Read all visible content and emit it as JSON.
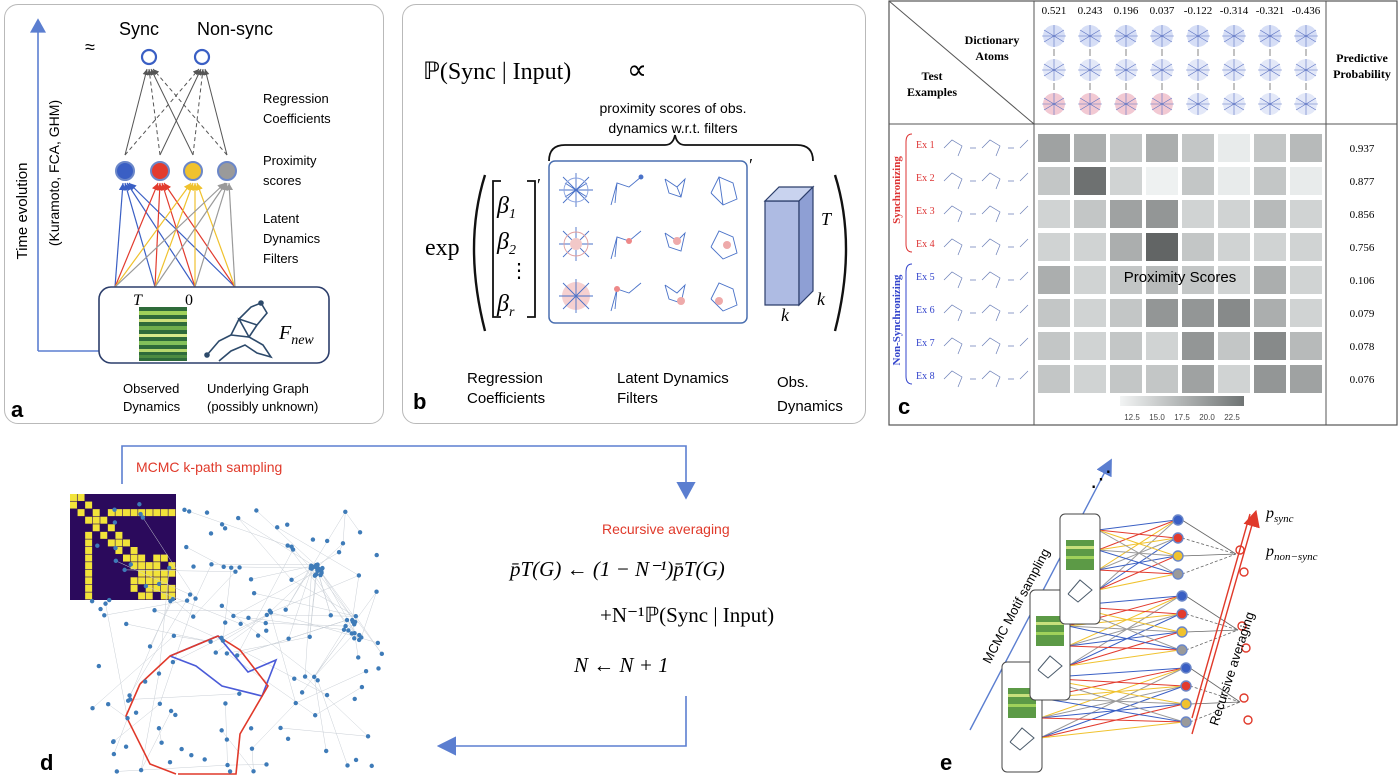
{
  "panel_a": {
    "letter": "a",
    "approx": "≈",
    "sync_label": "Sync",
    "nonsync_label": "Non-sync",
    "axis_label_1": "Time evolution",
    "axis_label_2": "(Kuramoto, FCA, GHM)",
    "regression_line1": "Regression",
    "regression_line2": "Coefficients",
    "proximity_line1": "Proximity",
    "proximity_line2": "scores",
    "latent_line1": "Latent",
    "latent_line2": "Dynamics",
    "latent_line3": "Filters",
    "T": "T",
    "zero": "0",
    "F": "F",
    "F_sub": "new",
    "observed_line1": "Observed",
    "observed_line2": "Dynamics",
    "graph_line1": "Underlying Graph",
    "graph_line2": "(possibly unknown)",
    "colors": {
      "blue": "#3a5fc4",
      "red": "#e23b2e",
      "yellow": "#f0c22e",
      "gray": "#9a9a9a",
      "arrow": "#6b87c9"
    }
  },
  "panel_b": {
    "letter": "b",
    "prob": "ℙ(Sync | Input)",
    "prop": "∝",
    "brace_line1": "proximity scores of obs.",
    "brace_line2": "dynamics w.r.t. filters",
    "exp": "exp",
    "beta": "β",
    "b1": "1",
    "b2": "2",
    "vdots": "⋮",
    "br": "r",
    "prime": "′",
    "T": "T",
    "k1": "k",
    "k2": "k",
    "reg_line1": "Regression",
    "reg_line2": "Coefficients",
    "lat_line1": "Latent Dynamics",
    "lat_line2": "Filters",
    "obs_line1": "Obs.",
    "obs_line2": "Dynamics"
  },
  "panel_c": {
    "letter": "c",
    "dictionary_line1": "Dictionary",
    "dictionary_line2": "Atoms",
    "test_line1": "Test",
    "test_line2": "Examples",
    "pred_line1": "Predictive",
    "pred_line2": "Probability",
    "atom_values": [
      "0.521",
      "0.243",
      "0.196",
      "0.037",
      "-0.122",
      "-0.314",
      "-0.321",
      "-0.436"
    ],
    "sync_group": "Synchronizing",
    "nonsync_group": "Non-Synchronizing",
    "examples": [
      "Ex 1",
      "Ex 2",
      "Ex 3",
      "Ex 4",
      "Ex 5",
      "Ex 6",
      "Ex 7",
      "Ex 8"
    ],
    "probabilities": [
      "0.937",
      "0.877",
      "0.856",
      "0.756",
      "0.106",
      "0.079",
      "0.078",
      "0.076"
    ],
    "overlay": "Proximity Scores",
    "colorbar_ticks": [
      "12.5",
      "15.0",
      "17.5",
      "20.0",
      "22.5"
    ],
    "heat": [
      [
        19,
        18,
        16,
        18,
        16,
        13,
        16,
        17
      ],
      [
        16,
        23,
        15,
        12,
        16,
        13,
        16,
        13
      ],
      [
        15,
        16,
        19,
        20,
        15,
        15,
        17,
        15
      ],
      [
        15,
        15,
        18,
        24,
        16,
        15,
        15,
        15
      ],
      [
        18,
        15,
        16,
        17,
        16,
        15,
        18,
        15
      ],
      [
        16,
        15,
        16,
        20,
        20,
        21,
        18,
        15
      ],
      [
        16,
        15,
        16,
        15,
        20,
        16,
        21,
        17
      ],
      [
        16,
        15,
        16,
        16,
        19,
        15,
        20,
        19
      ]
    ]
  },
  "panel_d": {
    "letter": "d",
    "mcmc": "MCMC k-path sampling",
    "recursive": "Recursive averaging",
    "eq_line1_lhs": "p̄T(G) ← (1 − N⁻¹)p̄T(G)",
    "eq_line2": "+N⁻¹ℙ(Sync | Input)",
    "eq_line3": "N ← N + 1",
    "red_color": "#e0392a"
  },
  "panel_e": {
    "letter": "e",
    "motif": "MCMC Motif sampling",
    "recursive": "Recursive averaging",
    "p": "p",
    "p_sync_sub": "sync",
    "p_nonsync_sub": "non−sync",
    "dots": "⋰"
  }
}
